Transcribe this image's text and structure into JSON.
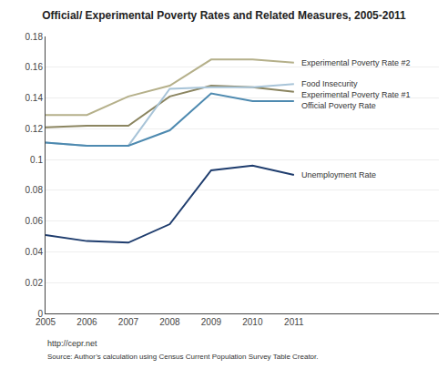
{
  "chart_data": {
    "type": "line",
    "title": "Official/ Experimental Poverty Rates and Related Measures, 2005-2011",
    "x": [
      2005,
      2006,
      2007,
      2008,
      2009,
      2010,
      2011
    ],
    "series": [
      {
        "name": "Experimental Poverty Rate #2",
        "color": "#b5b08a",
        "values": [
          0.129,
          0.129,
          0.141,
          0.148,
          0.165,
          0.165,
          0.163
        ]
      },
      {
        "name": "Experimental Poverty Rate #1",
        "color": "#8b8560",
        "values": [
          0.121,
          0.122,
          0.122,
          0.141,
          0.148,
          0.147,
          0.144
        ]
      },
      {
        "name": "Food Insecurity",
        "color": "#a8c4d8",
        "values": [
          0.111,
          0.109,
          0.109,
          0.146,
          0.147,
          0.147,
          0.149
        ]
      },
      {
        "name": "Official Poverty Rate",
        "color": "#4e8ab0",
        "values": [
          0.111,
          0.109,
          0.109,
          0.119,
          0.143,
          0.138,
          0.138
        ]
      },
      {
        "name": "Unemployment Rate",
        "color": "#1f3d6e",
        "values": [
          0.051,
          0.047,
          0.046,
          0.058,
          0.093,
          0.096,
          0.09
        ]
      }
    ],
    "xlim": [
      2005,
      2014.5
    ],
    "xticks": [
      2005,
      2006,
      2007,
      2008,
      2009,
      2010,
      2011
    ],
    "ylim": [
      0,
      0.18
    ],
    "yticks": [
      0,
      0.02,
      0.04,
      0.06,
      0.08,
      0.1,
      0.12,
      0.14,
      0.16,
      0.18
    ],
    "grid": true,
    "annotations": [
      "Experimental Poverty Rate #2",
      "Food Insecurity",
      "Experimental Poverty Rate #1",
      "Official Poverty Rate",
      "Unemployment Rate"
    ],
    "source": [
      "http://cepr.net",
      "Source: Author’s calculation using Census Current Population Survey Table Creator."
    ]
  }
}
